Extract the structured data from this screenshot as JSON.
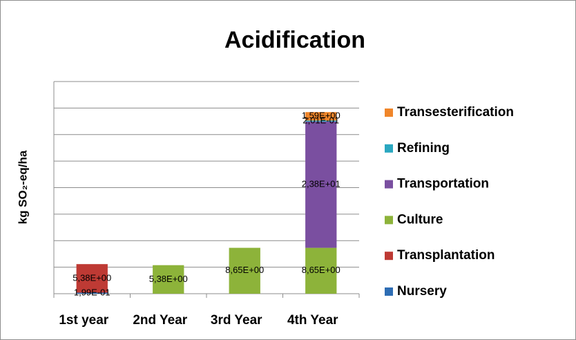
{
  "chart_data": {
    "type": "stacked_bar",
    "title": "Acidification",
    "y_label": "kg SO₂-eq/ha",
    "categories": [
      "1st year",
      "2nd Year",
      "3rd Year",
      "4th Year"
    ],
    "series": [
      {
        "name": "Nursery",
        "color": "#2e6db4",
        "values": [
          0.199,
          null,
          null,
          null
        ],
        "value_labels": [
          "1,99E-01",
          null,
          null,
          null
        ]
      },
      {
        "name": "Transplantation",
        "color": "#be3a34",
        "values": [
          5.38,
          null,
          null,
          null
        ],
        "value_labels": [
          "5,38E+00",
          null,
          null,
          null
        ]
      },
      {
        "name": "Culture",
        "color": "#8db33a",
        "values": [
          null,
          5.38,
          8.65,
          8.65
        ],
        "value_labels": [
          null,
          "5,38E+00",
          "8,65E+00",
          "8,65E+00"
        ]
      },
      {
        "name": "Transportation",
        "color": "#7a4fa0",
        "values": [
          null,
          null,
          null,
          23.8
        ],
        "value_labels": [
          null,
          null,
          null,
          "2,38E+01"
        ]
      },
      {
        "name": "Refining",
        "color": "#2aa7c0",
        "values": [
          null,
          null,
          null,
          0.201
        ],
        "value_labels": [
          null,
          null,
          null,
          "2,01E-01"
        ]
      },
      {
        "name": "Transesterification",
        "color": "#f0862a",
        "values": [
          null,
          null,
          null,
          1.59
        ],
        "value_labels": [
          null,
          null,
          null,
          "1,59E+00"
        ]
      }
    ],
    "ylim": [
      0,
      40
    ],
    "yticks": [
      0,
      5,
      10,
      15,
      20,
      25,
      30,
      35,
      40
    ],
    "grid": true,
    "legend": "right"
  }
}
